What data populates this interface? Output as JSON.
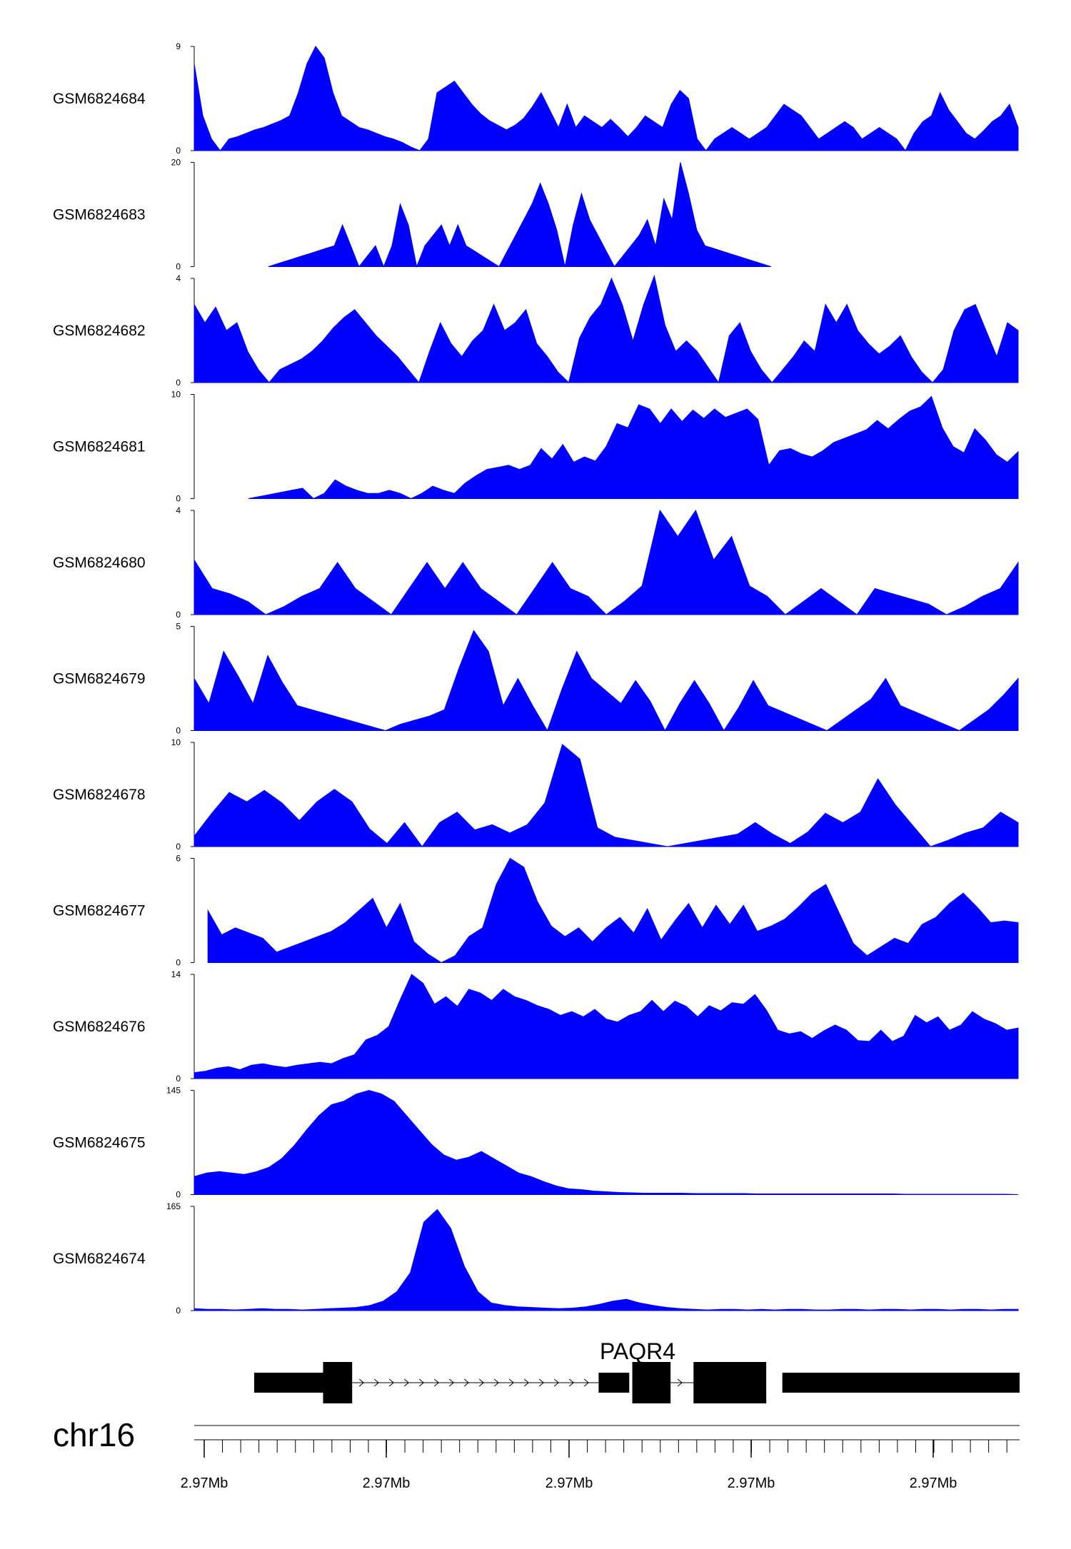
{
  "colors": {
    "fill": "#0000ff",
    "axis": "#000000",
    "gene": "#000000"
  },
  "chart_data": {
    "type": "area",
    "x_domain": [
      0,
      100
    ],
    "tracks": [
      {
        "name": "GSM6824684",
        "ymax": 9,
        "ymin": 0,
        "values": [
          7.5,
          3,
          1,
          0,
          1,
          1.2,
          1.5,
          1.8,
          2,
          2.3,
          2.6,
          3,
          5,
          7.5,
          9,
          8,
          5,
          3,
          2.5,
          2,
          1.8,
          1.5,
          1.2,
          1,
          0.7,
          0.3,
          0,
          1,
          5,
          5.5,
          6,
          5,
          4,
          3.2,
          2.6,
          2.2,
          1.8,
          2.2,
          2.8,
          3.8,
          5,
          3.5,
          2,
          4,
          2,
          3,
          2.5,
          2,
          2.7,
          2,
          1.2,
          2,
          3,
          2.5,
          2,
          4,
          5.2,
          4.5,
          1,
          0,
          1,
          1.5,
          2,
          1.5,
          1,
          1.5,
          2,
          3,
          4,
          3.5,
          3,
          2,
          1,
          1.5,
          2,
          2.5,
          2,
          1,
          1.5,
          2,
          1.5,
          1,
          0,
          1.5,
          2.5,
          3,
          5,
          3.5,
          2.5,
          1.5,
          1,
          1.7,
          2.5,
          3,
          4,
          2
        ]
      },
      {
        "name": "GSM6824683",
        "ymax": 20,
        "ymin": 0,
        "values": [
          null,
          null,
          null,
          null,
          null,
          null,
          null,
          null,
          null,
          0,
          0.5,
          1,
          1.5,
          2,
          2.5,
          3,
          3.5,
          4,
          8,
          4,
          0,
          2,
          4,
          0,
          4,
          12,
          8,
          0,
          4,
          6,
          8,
          4,
          8,
          4,
          3,
          2,
          1,
          0,
          3,
          6,
          9,
          12,
          16,
          12,
          7,
          0,
          8,
          14,
          9,
          6,
          3,
          0,
          2,
          4,
          6,
          9,
          4,
          13,
          9,
          20,
          14,
          7,
          4,
          3.5,
          3,
          2.5,
          2,
          1.5,
          1,
          0.5,
          0,
          null,
          null,
          null,
          null,
          null,
          null,
          null,
          null,
          null,
          null,
          null,
          null,
          null,
          null,
          null,
          null,
          null,
          null,
          null,
          null,
          null,
          null,
          null,
          null,
          null,
          null,
          null,
          null,
          null,
          null
        ]
      },
      {
        "name": "GSM6824682",
        "ymax": 4,
        "ymin": 0,
        "values": [
          3,
          2.3,
          2.9,
          2,
          2.3,
          1.2,
          0.5,
          0,
          0.5,
          0.7,
          0.9,
          1.2,
          1.6,
          2.1,
          2.5,
          2.8,
          2.3,
          1.8,
          1.4,
          1,
          0.5,
          0,
          1.2,
          2.3,
          1.5,
          1,
          1.6,
          2,
          3,
          2,
          2.3,
          2.8,
          1.5,
          1,
          0.4,
          0,
          1.7,
          2.5,
          3,
          4,
          3,
          1.6,
          3,
          4.1,
          2.2,
          1.2,
          1.6,
          1.2,
          0.6,
          0,
          1.8,
          2.3,
          1.2,
          0.5,
          0,
          0.5,
          1,
          1.6,
          1.2,
          3,
          2.3,
          3,
          2,
          1.5,
          1.1,
          1.4,
          1.8,
          1,
          0.4,
          0,
          0.5,
          2,
          2.8,
          3,
          2,
          1,
          2.3,
          2
        ]
      },
      {
        "name": "GSM6824681",
        "ymax": 10,
        "ymin": 0,
        "values": [
          null,
          null,
          null,
          null,
          null,
          0,
          0.2,
          0.4,
          0.6,
          0.8,
          1,
          0,
          0.5,
          1.8,
          1.2,
          0.8,
          0.5,
          0.5,
          0.8,
          0.5,
          0,
          0.5,
          1.2,
          0.8,
          0.5,
          1.5,
          2.2,
          2.8,
          3,
          3.2,
          2.8,
          3.2,
          4.8,
          3.8,
          5.2,
          3.5,
          4,
          3.6,
          5,
          7.2,
          6.8,
          9,
          8.6,
          7.2,
          8.6,
          7.4,
          8.5,
          7.7,
          8.6,
          7.8,
          8.2,
          8.6,
          7.6,
          3.2,
          4.6,
          4.8,
          4.3,
          4,
          4.6,
          5.4,
          5.8,
          6.2,
          6.6,
          7.5,
          6.7,
          7.6,
          8.4,
          8.8,
          9.8,
          6.8,
          5,
          4.4,
          6.7,
          5.6,
          4.2,
          3.5,
          4.5
        ]
      },
      {
        "name": "GSM6824680",
        "ymax": 4,
        "ymin": 0,
        "values": [
          2.1,
          1,
          0.8,
          0.5,
          0,
          0.3,
          0.7,
          1,
          2,
          1,
          0.5,
          0,
          1,
          2,
          1,
          2,
          1,
          0.5,
          0,
          1,
          2,
          1,
          0.7,
          0,
          0.5,
          1.1,
          4,
          3,
          4,
          2.1,
          3,
          1.1,
          0.7,
          0,
          0.5,
          1,
          0.5,
          0,
          1,
          0.8,
          0.6,
          0.4,
          0,
          0.3,
          0.7,
          1,
          2
        ]
      },
      {
        "name": "GSM6824679",
        "ymax": 5,
        "ymin": 0,
        "values": [
          2.5,
          1.3,
          3.8,
          2.6,
          1.3,
          3.6,
          2.3,
          1.2,
          1,
          0.8,
          0.6,
          0.4,
          0.2,
          0,
          0.3,
          0.5,
          0.7,
          1,
          3,
          4.8,
          3.8,
          1.2,
          2.5,
          1.2,
          0,
          2,
          3.8,
          2.5,
          1.9,
          1.3,
          2.4,
          1.4,
          0,
          1.3,
          2.4,
          1.3,
          0,
          1.1,
          2.4,
          1.2,
          0.9,
          0.6,
          0.3,
          0,
          0.5,
          1,
          1.5,
          2.5,
          1.2,
          0.9,
          0.6,
          0.3,
          0,
          0.5,
          1,
          1.7,
          2.5
        ]
      },
      {
        "name": "GSM6824678",
        "ymax": 10,
        "ymin": 0,
        "values": [
          1,
          3.2,
          5.2,
          4.3,
          5.4,
          4.2,
          2.5,
          4.3,
          5.5,
          4.3,
          1.7,
          0.3,
          2.3,
          0,
          2.3,
          3.3,
          1.6,
          2.1,
          1.3,
          2.1,
          4.2,
          9.8,
          8.4,
          1.8,
          0.9,
          0.6,
          0.3,
          0,
          0.3,
          0.6,
          0.9,
          1.2,
          2.3,
          1.2,
          0.3,
          1.4,
          3.2,
          2.3,
          3.3,
          6.5,
          4,
          2,
          0,
          0.6,
          1.3,
          1.8,
          3.3,
          2.3
        ]
      },
      {
        "name": "GSM6824677",
        "ymax": 6,
        "ymin": 0,
        "values": [
          null,
          3,
          1.6,
          2,
          1.7,
          1.4,
          0.6,
          0.9,
          1.2,
          1.5,
          1.8,
          2.3,
          3,
          3.7,
          2,
          3.4,
          1.2,
          0.5,
          0,
          0.4,
          1.5,
          2,
          4.5,
          6,
          5.5,
          3.5,
          2.1,
          1.5,
          2,
          1.2,
          2,
          2.6,
          1.7,
          3.1,
          1.3,
          2.4,
          3.4,
          2,
          3.3,
          2.2,
          3.3,
          1.8,
          2.1,
          2.5,
          3.2,
          4,
          4.5,
          2.8,
          1.1,
          0.4,
          0.9,
          1.4,
          1.1,
          2.2,
          2.6,
          3.4,
          4,
          3.2,
          2.3,
          2.4,
          2.3
        ]
      },
      {
        "name": "GSM6824676",
        "ymax": 14,
        "ymin": 0,
        "values": [
          0.8,
          1,
          1.4,
          1.6,
          1.2,
          1.8,
          2,
          1.7,
          1.5,
          1.8,
          2,
          2.2,
          2,
          2.7,
          3.2,
          5.2,
          5.8,
          7,
          10.6,
          14,
          12.8,
          10,
          11,
          9.7,
          12,
          11.5,
          10.5,
          12,
          11,
          10.5,
          9.8,
          9.3,
          8.5,
          9,
          8.3,
          9.3,
          8,
          7.6,
          8.5,
          9,
          10.5,
          9,
          10.4,
          9.7,
          8.3,
          9.8,
          9.1,
          10.2,
          10,
          11.3,
          9.2,
          6.5,
          6,
          6.3,
          5.4,
          6.4,
          7.2,
          6.5,
          5.1,
          5,
          6.5,
          5,
          5.7,
          8.5,
          7.5,
          8.3,
          6.5,
          7.2,
          9,
          8,
          7.4,
          6.5,
          6.8
        ]
      },
      {
        "name": "GSM6824675",
        "ymax": 145,
        "ymin": 0,
        "values": [
          25,
          30,
          32,
          30,
          28,
          32,
          38,
          50,
          68,
          90,
          110,
          125,
          130,
          140,
          145,
          140,
          130,
          110,
          90,
          70,
          55,
          48,
          52,
          60,
          50,
          40,
          30,
          25,
          18,
          12,
          8,
          7,
          5,
          4,
          3,
          2.5,
          2,
          2,
          2,
          2,
          1.5,
          1.5,
          1.5,
          1.5,
          1.5,
          1,
          1,
          1,
          1,
          1,
          1,
          1,
          1,
          1,
          1,
          1,
          1,
          0.5,
          0.5,
          0.5,
          0.5,
          0.5,
          0.5,
          0.5,
          0.5,
          0.5,
          0
        ]
      },
      {
        "name": "GSM6824674",
        "ymax": 165,
        "ymin": 0,
        "values": [
          3,
          2,
          2,
          1,
          2,
          3,
          2,
          2,
          1,
          2,
          3,
          4,
          5,
          8,
          15,
          30,
          60,
          140,
          160,
          130,
          70,
          30,
          12,
          8,
          6,
          5,
          4,
          3,
          4,
          6,
          10,
          15,
          18,
          12,
          8,
          5,
          3,
          2,
          1,
          2,
          2,
          1,
          2,
          1,
          2,
          2,
          1,
          1,
          2,
          2,
          1,
          2,
          2,
          1,
          2,
          2,
          1,
          2,
          2,
          1,
          2,
          2
        ]
      }
    ],
    "x_ticks": [
      "2.97Mb",
      "2.97Mb",
      "2.97Mb",
      "2.97Mb",
      "2.97Mb"
    ],
    "chromosome": "chr16",
    "gene": {
      "name": "PAQR4",
      "thin_exons": [
        [
          0,
          9
        ],
        [
          45,
          49
        ],
        [
          69,
          100
        ]
      ],
      "thick_exons": [
        [
          9,
          12.8
        ],
        [
          49.4,
          54.4
        ],
        [
          57.4,
          66.9
        ]
      ],
      "introns": [
        [
          12.8,
          45
        ],
        [
          54.4,
          57.4
        ]
      ],
      "strand": "+"
    }
  }
}
